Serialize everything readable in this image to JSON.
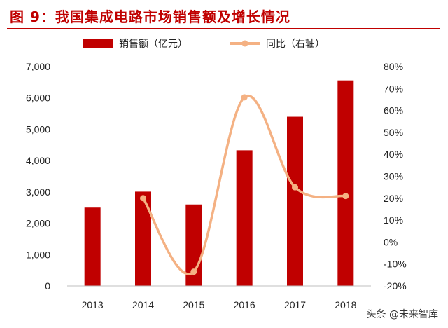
{
  "header": {
    "title": "图 9：我国集成电路市场销售额及增长情况"
  },
  "watermark": "头条 @未来智库",
  "colors": {
    "bar": "#c00000",
    "line": "#f4b183",
    "title": "#c00000"
  },
  "chart_data": {
    "type": "bar+line",
    "categories": [
      "2013",
      "2014",
      "2015",
      "2016",
      "2017",
      "2018"
    ],
    "series": [
      {
        "name": "销售额（亿元）",
        "type": "bar",
        "axis": "left",
        "values": [
          2500,
          3010,
          2600,
          4330,
          5400,
          6560
        ]
      },
      {
        "name": "同比（右轴）",
        "type": "line",
        "axis": "right",
        "smooth": true,
        "values": [
          null,
          20.0,
          -13.5,
          66.0,
          25.0,
          21.0
        ]
      }
    ],
    "y_left": {
      "range": [
        0,
        7000
      ],
      "ticks": [
        "0",
        "1,000",
        "2,000",
        "3,000",
        "4,000",
        "5,000",
        "6,000",
        "7,000"
      ]
    },
    "y_right": {
      "range": [
        -20,
        80
      ],
      "ticks": [
        "-20%",
        "-10%",
        "0%",
        "10%",
        "20%",
        "30%",
        "40%",
        "50%",
        "60%",
        "70%",
        "80%"
      ]
    },
    "legend_position": "top",
    "grid": false
  }
}
